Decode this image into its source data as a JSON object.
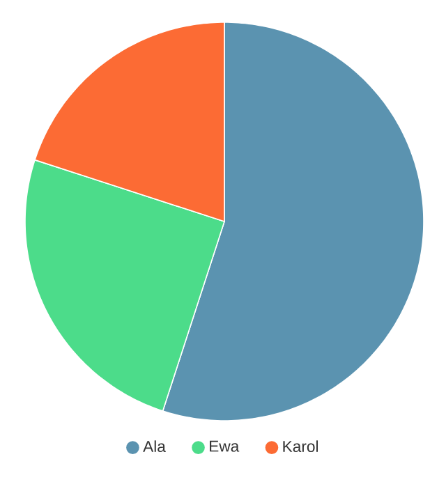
{
  "chart_data": {
    "type": "pie",
    "categories": [
      "Ala",
      "Ewa",
      "Karol"
    ],
    "values": [
      55,
      25,
      20
    ],
    "colors": [
      "#5b93b0",
      "#4cdc8a",
      "#fc6b34"
    ],
    "legend": "bottom"
  }
}
